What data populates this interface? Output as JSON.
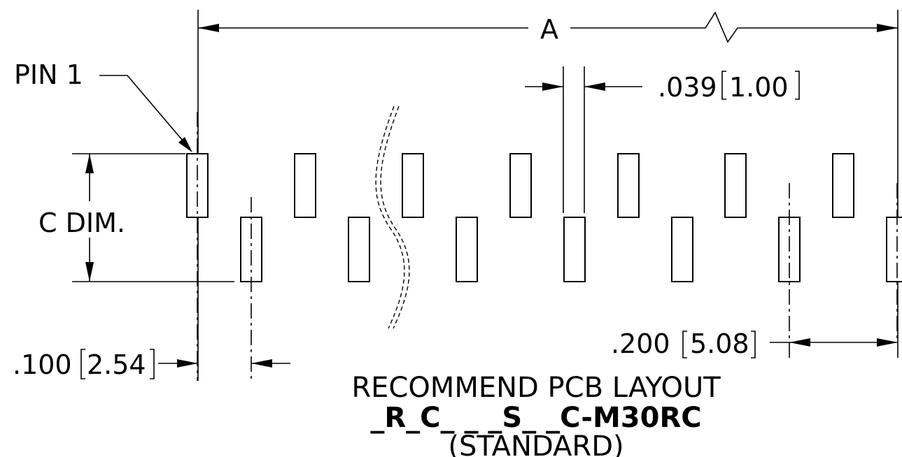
{
  "drawing": {
    "dim_a_label": "A",
    "pin1_label": "PIN 1",
    "c_dim_label": "C DIM.",
    "pad_width_value": ".039",
    "pad_width_metric": "1.00",
    "pitch_value": ".100",
    "pitch_metric": "2.54",
    "row_offset_value": ".200",
    "row_offset_metric": "5.08",
    "title_line": "RECOMMEND PCB LAYOUT",
    "part_number": "_R_C_ _ _S_ _C-M30RC",
    "variant": "(STANDARD)"
  },
  "style": {
    "line_color": "#000000",
    "background": "#ffffff"
  }
}
